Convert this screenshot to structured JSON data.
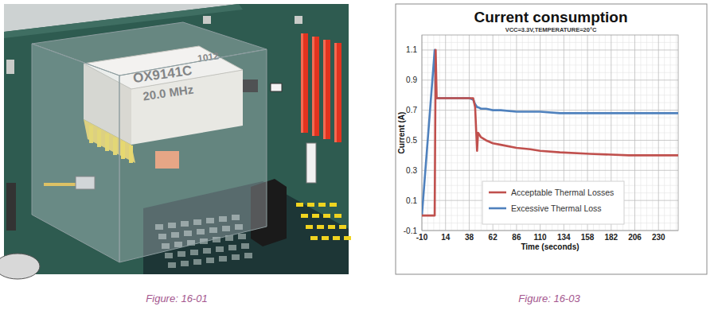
{
  "chart_data": {
    "type": "line",
    "title": "Current consumption",
    "subtitle": "VCC=3.3V,TEMPERATURE=20°C",
    "x_label": "Time (seconds)",
    "y_label": "Current (A)",
    "x": [
      -10,
      3,
      4,
      5,
      6,
      20,
      38,
      42,
      44,
      46,
      47,
      50,
      55,
      62,
      70,
      86,
      100,
      110,
      130,
      160,
      200,
      250
    ],
    "series": [
      {
        "name": "Acceptable Thermal Losses",
        "color": "#c0504d",
        "values": [
          0,
          0,
          1.1,
          0.78,
          0.78,
          0.78,
          0.78,
          0.78,
          0.72,
          0.43,
          0.55,
          0.52,
          0.5,
          0.48,
          0.47,
          0.45,
          0.44,
          0.43,
          0.42,
          0.41,
          0.4,
          0.4
        ]
      },
      {
        "name": "Excessive Thermal Loss",
        "color": "#4f81bd",
        "values": [
          0,
          1.1,
          0.78,
          0.78,
          0.78,
          0.78,
          0.78,
          0.77,
          0.74,
          0.72,
          0.72,
          0.71,
          0.71,
          0.7,
          0.7,
          0.69,
          0.69,
          0.69,
          0.68,
          0.68,
          0.68,
          0.68
        ]
      }
    ],
    "xlim": [
      -10,
      250
    ],
    "xticks": [
      -10,
      14,
      38,
      62,
      86,
      110,
      134,
      158,
      182,
      206,
      230
    ],
    "ylim": [
      -0.1,
      1.2
    ],
    "yticks": [
      -0.1,
      0.1,
      0.3,
      0.5,
      0.7,
      0.9,
      1.1
    ],
    "grid": true,
    "legend": "bottom"
  },
  "illustration": {
    "labels": [
      "1012",
      "OX9141C",
      "20.0 MHz"
    ]
  },
  "captions": [
    "Figure: 16-01",
    "Figure: 16-03"
  ]
}
